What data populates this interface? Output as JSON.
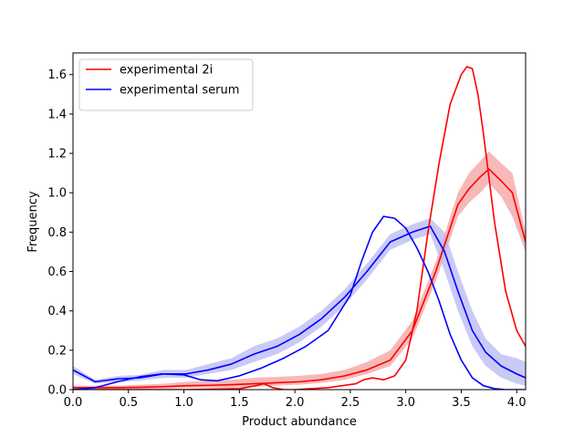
{
  "chart_data": {
    "type": "line",
    "title": "",
    "xlabel": "Product abundance",
    "ylabel": "Frequency",
    "xlim": [
      0.0,
      4.08
    ],
    "ylim": [
      0.0,
      1.71
    ],
    "xticks": [
      0.0,
      0.5,
      1.0,
      1.5,
      2.0,
      2.5,
      3.0,
      3.5,
      4.0
    ],
    "xtick_labels": [
      "0.0",
      "0.5",
      "1.0",
      "1.5",
      "2.0",
      "2.5",
      "3.0",
      "3.5",
      "4.0"
    ],
    "yticks": [
      0.0,
      0.2,
      0.4,
      0.6,
      0.8,
      1.0,
      1.2,
      1.4,
      1.6
    ],
    "ytick_labels": [
      "0.0",
      "0.2",
      "0.4",
      "0.6",
      "0.8",
      "1.0",
      "1.2",
      "1.4",
      "1.6"
    ],
    "grid": false,
    "legend_position": "upper-left",
    "series": [
      {
        "name": "experimental 2i",
        "color": "#ff0000",
        "band_color": "#f4a0a0",
        "x": [
          0.0,
          0.2,
          0.41,
          0.6,
          0.82,
          1.02,
          1.22,
          1.43,
          1.63,
          1.84,
          2.04,
          2.24,
          2.45,
          2.65,
          2.86,
          3.06,
          3.27,
          3.47,
          3.57,
          3.67,
          3.75,
          3.86,
          3.96,
          4.08
        ],
        "y": [
          0.01,
          0.01,
          0.01,
          0.012,
          0.015,
          0.02,
          0.022,
          0.025,
          0.03,
          0.035,
          0.04,
          0.05,
          0.07,
          0.1,
          0.15,
          0.3,
          0.6,
          0.94,
          1.02,
          1.08,
          1.12,
          1.06,
          1.0,
          0.75
        ],
        "band_low": [
          0.0,
          0.0,
          0.0,
          0.0,
          0.005,
          0.008,
          0.01,
          0.01,
          0.015,
          0.02,
          0.025,
          0.035,
          0.05,
          0.08,
          0.12,
          0.26,
          0.55,
          0.88,
          0.95,
          1.0,
          1.05,
          0.98,
          0.88,
          0.7
        ],
        "band_high": [
          0.02,
          0.02,
          0.02,
          0.025,
          0.03,
          0.04,
          0.045,
          0.05,
          0.06,
          0.065,
          0.07,
          0.08,
          0.1,
          0.14,
          0.2,
          0.35,
          0.65,
          1.0,
          1.1,
          1.16,
          1.21,
          1.15,
          1.1,
          0.8
        ]
      },
      {
        "name": "experimental serum",
        "color": "#0000ff",
        "band_color": "#b8b8f4",
        "x": [
          0.0,
          0.2,
          0.41,
          0.6,
          0.82,
          1.02,
          1.22,
          1.43,
          1.63,
          1.84,
          2.04,
          2.24,
          2.45,
          2.65,
          2.86,
          3.06,
          3.22,
          3.35,
          3.47,
          3.6,
          3.72,
          3.86,
          4.0,
          4.08
        ],
        "y": [
          0.1,
          0.04,
          0.055,
          0.06,
          0.08,
          0.08,
          0.1,
          0.13,
          0.18,
          0.22,
          0.28,
          0.36,
          0.47,
          0.6,
          0.75,
          0.8,
          0.83,
          0.7,
          0.5,
          0.3,
          0.19,
          0.12,
          0.08,
          0.06
        ],
        "band_low": [
          0.08,
          0.03,
          0.04,
          0.045,
          0.06,
          0.06,
          0.08,
          0.1,
          0.14,
          0.18,
          0.24,
          0.32,
          0.43,
          0.56,
          0.71,
          0.76,
          0.79,
          0.6,
          0.4,
          0.22,
          0.12,
          0.06,
          0.03,
          0.02
        ],
        "band_high": [
          0.12,
          0.05,
          0.07,
          0.075,
          0.1,
          0.1,
          0.13,
          0.16,
          0.22,
          0.26,
          0.32,
          0.4,
          0.51,
          0.64,
          0.79,
          0.84,
          0.87,
          0.8,
          0.6,
          0.4,
          0.26,
          0.18,
          0.16,
          0.14
        ]
      },
      {
        "name": "",
        "color": "#ff0000",
        "x": [
          0.0,
          0.2,
          0.5,
          1.0,
          1.5,
          1.65,
          1.72,
          1.8,
          1.9,
          2.0,
          2.3,
          2.55,
          2.62,
          2.7,
          2.8,
          2.9,
          3.0,
          3.1,
          3.2,
          3.3,
          3.4,
          3.5,
          3.55,
          3.6,
          3.65,
          3.7,
          3.8,
          3.9,
          4.0,
          4.08
        ],
        "y": [
          0.0,
          0.0,
          0.0,
          0.0,
          0.005,
          0.02,
          0.03,
          0.01,
          0.0,
          0.0,
          0.01,
          0.03,
          0.05,
          0.06,
          0.05,
          0.07,
          0.15,
          0.4,
          0.8,
          1.15,
          1.45,
          1.6,
          1.64,
          1.63,
          1.5,
          1.3,
          0.85,
          0.5,
          0.3,
          0.22
        ]
      },
      {
        "name": "",
        "color": "#0000ff",
        "x": [
          0.0,
          0.2,
          0.4,
          0.6,
          0.8,
          1.0,
          1.15,
          1.3,
          1.5,
          1.7,
          1.9,
          2.1,
          2.3,
          2.5,
          2.6,
          2.7,
          2.8,
          2.9,
          3.0,
          3.1,
          3.2,
          3.3,
          3.4,
          3.5,
          3.6,
          3.7,
          3.8,
          3.9,
          4.0,
          4.08
        ],
        "y": [
          0.0,
          0.01,
          0.04,
          0.065,
          0.08,
          0.075,
          0.05,
          0.045,
          0.07,
          0.11,
          0.16,
          0.22,
          0.3,
          0.48,
          0.65,
          0.8,
          0.88,
          0.87,
          0.82,
          0.72,
          0.6,
          0.45,
          0.28,
          0.15,
          0.06,
          0.02,
          0.005,
          0.0,
          0.0,
          0.0
        ]
      }
    ]
  }
}
